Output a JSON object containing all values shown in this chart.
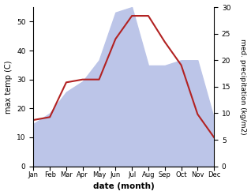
{
  "months": [
    "Jan",
    "Feb",
    "Mar",
    "Apr",
    "May",
    "Jun",
    "Jul",
    "Aug",
    "Sep",
    "Oct",
    "Nov",
    "Dec"
  ],
  "temperature": [
    16,
    17,
    29,
    30,
    30,
    44,
    52,
    52,
    43,
    35,
    18,
    10
  ],
  "precipitation": [
    8,
    10,
    14,
    16,
    20,
    29,
    30,
    19,
    19,
    20,
    20,
    9
  ],
  "temp_color": "#b22222",
  "precip_fill_color": "#bcc5e8",
  "xlabel": "date (month)",
  "ylabel_left": "max temp (C)",
  "ylabel_right": "med. precipitation (kg/m2)",
  "ylim_left": [
    0,
    55
  ],
  "ylim_right": [
    0,
    30
  ],
  "yticks_left": [
    0,
    10,
    20,
    30,
    40,
    50
  ],
  "yticks_right": [
    0,
    5,
    10,
    15,
    20,
    25,
    30
  ],
  "background_color": "#ffffff"
}
